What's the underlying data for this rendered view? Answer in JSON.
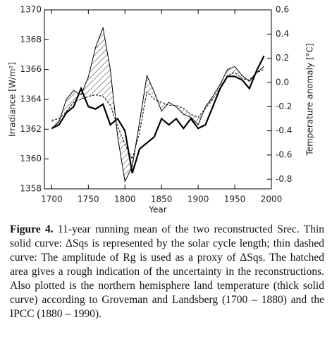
{
  "chart_data": {
    "type": "line",
    "xlabel": "Year",
    "ylabel": "Irradiance [W/m²]",
    "y2label": "Temperature anomaly [°C]",
    "x": [
      1700,
      1710,
      1720,
      1730,
      1740,
      1750,
      1760,
      1770,
      1780,
      1790,
      1800,
      1810,
      1820,
      1830,
      1840,
      1850,
      1860,
      1870,
      1880,
      1890,
      1900,
      1910,
      1920,
      1930,
      1940,
      1950,
      1960,
      1970,
      1980,
      1990
    ],
    "series": [
      {
        "color": "#000000",
        "style": "solid",
        "width": 1,
        "values": [
          1362.0,
          1362.5,
          1364.0,
          1364.6,
          1364.3,
          1365.5,
          1367.5,
          1368.8,
          1366.0,
          1361.5,
          1358.5,
          1359.5,
          1362.5,
          1365.6,
          1364.5,
          1363.2,
          1363.8,
          1363.5,
          1363.0,
          1362.8,
          1362.3,
          1363.5,
          1364.2,
          1365.0,
          1366.0,
          1366.2,
          1365.6,
          1365.2,
          1365.8,
          1366.2
        ]
      },
      {
        "color": "#000000",
        "style": "dashed",
        "width": 1,
        "values": [
          1362.6,
          1362.7,
          1363.2,
          1363.8,
          1364.0,
          1364.2,
          1364.3,
          1364.2,
          1363.6,
          1362.2,
          1361.0,
          1360.0,
          1361.8,
          1364.5,
          1364.0,
          1363.8,
          1363.6,
          1363.6,
          1363.4,
          1363.0,
          1362.8,
          1363.4,
          1364.0,
          1364.8,
          1365.6,
          1365.8,
          1365.4,
          1365.3,
          1365.8,
          1366.0
        ]
      },
      {
        "color": "#000000",
        "style": "solid",
        "width": 2.2,
        "axis": "y2",
        "values": [
          -0.38,
          -0.35,
          -0.25,
          -0.2,
          -0.05,
          -0.2,
          -0.22,
          -0.18,
          -0.35,
          -0.3,
          -0.4,
          -0.75,
          -0.55,
          -0.5,
          -0.45,
          -0.3,
          -0.35,
          -0.3,
          -0.38,
          -0.3,
          -0.38,
          -0.35,
          -0.2,
          -0.05,
          0.05,
          0.05,
          0.02,
          -0.05,
          0.1,
          0.22
        ]
      }
    ],
    "hatch_between": [
      0,
      1
    ],
    "xlim": [
      1690,
      2000
    ],
    "xticks": [
      1700,
      1750,
      1800,
      1850,
      1900,
      1950,
      2000
    ],
    "ylim": [
      1358,
      1370
    ],
    "yticks": [
      1358,
      1360,
      1362,
      1364,
      1366,
      1368,
      1370
    ],
    "y2lim": [
      -0.88,
      0.6
    ],
    "y2ticks": [
      -0.8,
      -0.6,
      -0.4,
      -0.2,
      {
        "value": 0,
        "label": "0.0"
      },
      0.2,
      0.4,
      0.6
    ]
  },
  "caption": {
    "label": "Figure 4.",
    "text": "11-year running mean of the two reconstructed Srec. Thin solid curve: ΔSqs is represented by the solar cycle length; thin dashed curve: The amplitude of Rg is used as a proxy of ΔSqs. The hatched area gives a rough indication of the uncertainty in the reconstructions. Also plotted is the northern hemisphere land temperature (thick solid curve) according to Groveman and Landsberg (1700 – 1880) and the IPCC (1880 – 1990)."
  }
}
